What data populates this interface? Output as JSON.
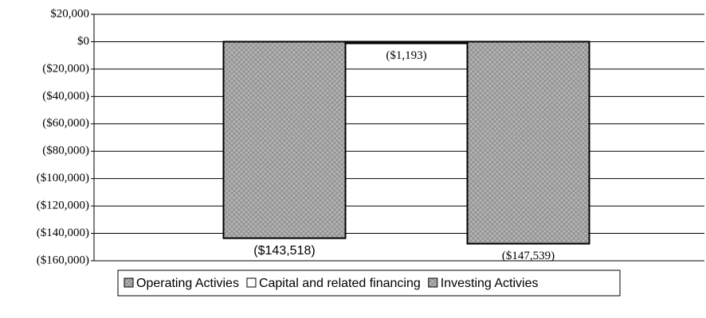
{
  "chart_data": {
    "type": "bar",
    "categories": [
      null
    ],
    "series": [
      {
        "name": "Operating Activies",
        "color": "#a8a8a8",
        "values": [
          -143518
        ],
        "value_labels": [
          "($143,518)"
        ]
      },
      {
        "name": "Capital and related financing",
        "color": "#ffffff",
        "values": [
          -1193
        ],
        "value_labels": [
          "($1,193)"
        ]
      },
      {
        "name": "Investing Activies",
        "color": "#a8a8a8",
        "values": [
          -147539
        ],
        "value_labels": [
          "($147,539)"
        ]
      }
    ],
    "ylim": [
      -160000,
      20000
    ],
    "yticks": [
      {
        "value": 20000,
        "label": "$20,000"
      },
      {
        "value": 0,
        "label": "$0"
      },
      {
        "value": -20000,
        "label": "($20,000)"
      },
      {
        "value": -40000,
        "label": "($40,000)"
      },
      {
        "value": -60000,
        "label": "($60,000)"
      },
      {
        "value": -80000,
        "label": "($80,000)"
      },
      {
        "value": -100000,
        "label": "($100,000)"
      },
      {
        "value": -120000,
        "label": "($120,000)"
      },
      {
        "value": -140000,
        "label": "($140,000)"
      },
      {
        "value": -160000,
        "label": "($160,000)"
      }
    ],
    "grid": true,
    "legend": "bottom"
  }
}
